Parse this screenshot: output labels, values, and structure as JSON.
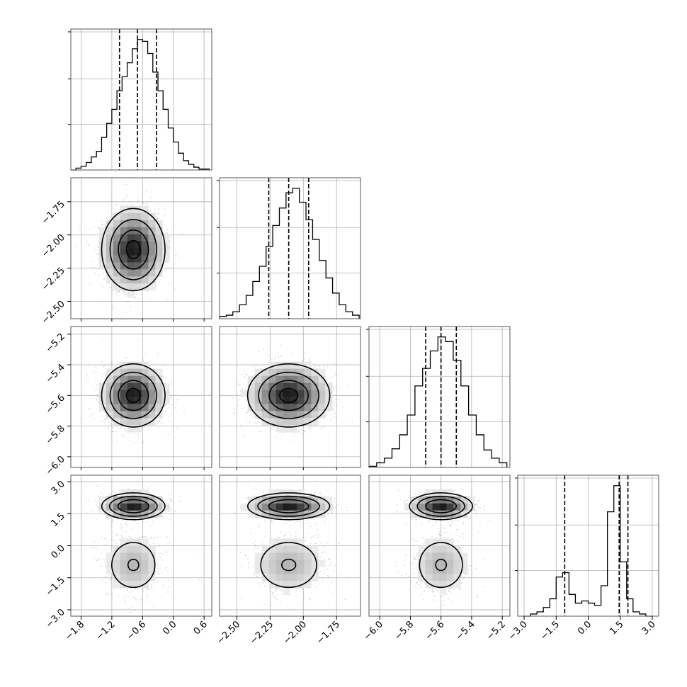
{
  "chart_data": {
    "type": "corner",
    "parameters": 4,
    "colors": {
      "ink": "#000000",
      "grid": "#b0b0b0",
      "frame": "#555555",
      "scatter": "#9a9a9a"
    },
    "ranges": [
      [
        -2.0,
        0.75
      ],
      [
        -2.63,
        -1.57
      ],
      [
        -6.07,
        -5.15
      ],
      [
        -3.3,
        3.3
      ]
    ],
    "ticks": [
      [
        -1.8,
        -1.2,
        -0.6,
        0.0,
        0.6
      ],
      [
        -2.5,
        -2.25,
        -2.0,
        -1.75
      ],
      [
        -6.0,
        -5.8,
        -5.6,
        -5.4,
        -5.2
      ],
      [
        -3.0,
        -1.5,
        0.0,
        1.5,
        3.0
      ]
    ],
    "tick_labels": [
      [
        "−1.8",
        "−1.2",
        "−0.6",
        "0.0",
        "0.6"
      ],
      [
        "−2.50",
        "−2.25",
        "−2.00",
        "−1.75"
      ],
      [
        "−6.0",
        "−5.8",
        "−5.6",
        "−5.4",
        "−5.2"
      ],
      [
        "−3.0",
        "−1.5",
        "0.0",
        "1.5",
        "3.0"
      ]
    ],
    "quantiles": [
      [
        -1.05,
        -0.7,
        -0.33
      ],
      [
        -2.26,
        -2.11,
        -1.96
      ],
      [
        -5.7,
        -5.6,
        -5.5
      ],
      [
        -1.1,
        1.45,
        1.86
      ]
    ],
    "histograms": [
      {
        "param": 0,
        "bin_edges": [
          -2.0,
          -1.9,
          -1.8,
          -1.7,
          -1.6,
          -1.5,
          -1.4,
          -1.3,
          -1.2,
          -1.1,
          -1.0,
          -0.9,
          -0.8,
          -0.7,
          -0.6,
          -0.5,
          -0.4,
          -0.3,
          -0.2,
          -0.1,
          0.0,
          0.1,
          0.2,
          0.3,
          0.4,
          0.5,
          0.6,
          0.7
        ],
        "counts": [
          0,
          2,
          4,
          8,
          14,
          20,
          35,
          50,
          65,
          85,
          100,
          115,
          130,
          140,
          138,
          125,
          105,
          85,
          65,
          45,
          30,
          18,
          10,
          6,
          3,
          1,
          1
        ]
      },
      {
        "param": 1,
        "bin_edges": [
          -2.63,
          -2.58,
          -2.53,
          -2.48,
          -2.43,
          -2.38,
          -2.33,
          -2.28,
          -2.23,
          -2.18,
          -2.13,
          -2.08,
          -2.03,
          -1.98,
          -1.93,
          -1.88,
          -1.83,
          -1.78,
          -1.73,
          -1.68,
          -1.63,
          -1.58
        ],
        "counts": [
          2,
          3,
          6,
          12,
          20,
          32,
          45,
          62,
          80,
          95,
          108,
          112,
          100,
          85,
          68,
          50,
          35,
          22,
          12,
          6,
          3
        ]
      },
      {
        "param": 2,
        "bin_edges": [
          -6.07,
          -6.02,
          -5.97,
          -5.92,
          -5.87,
          -5.82,
          -5.77,
          -5.72,
          -5.67,
          -5.62,
          -5.57,
          -5.52,
          -5.47,
          -5.42,
          -5.37,
          -5.32,
          -5.27,
          -5.22,
          -5.17
        ],
        "counts": [
          1,
          4,
          8,
          16,
          28,
          45,
          70,
          85,
          100,
          112,
          108,
          92,
          70,
          45,
          28,
          15,
          8,
          4
        ]
      },
      {
        "param": 3,
        "bin_edges": [
          -3.0,
          -2.7,
          -2.4,
          -2.1,
          -1.8,
          -1.5,
          -1.2,
          -0.9,
          -0.6,
          -0.3,
          0.0,
          0.3,
          0.6,
          0.9,
          1.2,
          1.5,
          1.8,
          2.1,
          2.4,
          2.7,
          3.0
        ],
        "counts": [
          0,
          1,
          2,
          4,
          8,
          18,
          20,
          10,
          6,
          7,
          6,
          5,
          14,
          48,
          60,
          25,
          8,
          2,
          1,
          0
        ]
      }
    ],
    "pairs": [
      {
        "x": 0,
        "y": 1,
        "center": [
          -0.78,
          -2.11
        ],
        "spread": [
          0.3,
          0.15
        ]
      },
      {
        "x": 0,
        "y": 2,
        "center": [
          -0.78,
          -5.6
        ],
        "spread": [
          0.3,
          0.1
        ]
      },
      {
        "x": 1,
        "y": 2,
        "center": [
          -2.11,
          -5.6
        ],
        "spread": [
          0.15,
          0.1
        ]
      },
      {
        "x": 0,
        "y": 3,
        "bimodal": true
      },
      {
        "x": 1,
        "y": 3,
        "bimodal": true
      },
      {
        "x": 2,
        "y": 3,
        "bimodal": true
      }
    ],
    "grid": true,
    "xlabel": "",
    "ylabel": ""
  }
}
